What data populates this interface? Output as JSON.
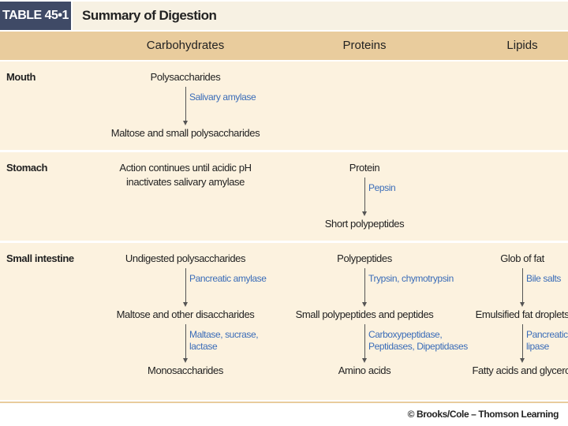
{
  "header": {
    "label": "TABLE 45•1",
    "title": "Summary of Digestion"
  },
  "table": {
    "columns": [
      "Carbohydrates",
      "Proteins",
      "Lipids"
    ],
    "rows": [
      {
        "name": "Mouth",
        "cells": [
          {
            "substances": [
              "Polysaccharides",
              "Maltose and small polysaccharides"
            ],
            "enzymes": [
              [
                "Salivary amylase"
              ]
            ]
          },
          {},
          {}
        ]
      },
      {
        "name": "Stomach",
        "cells": [
          {
            "note": [
              "Action continues until acidic pH",
              "inactivates salivary amylase"
            ]
          },
          {
            "substances": [
              "Protein",
              "Short polypeptides"
            ],
            "enzymes": [
              [
                "Pepsin"
              ]
            ]
          },
          {}
        ]
      },
      {
        "name": "Small intestine",
        "cells": [
          {
            "substances": [
              "Undigested polysaccharides",
              "Maltose and other disaccharides",
              "Monosaccharides"
            ],
            "enzymes": [
              [
                "Pancreatic amylase"
              ],
              [
                "Maltase, sucrase,",
                "lactase"
              ]
            ]
          },
          {
            "substances": [
              "Polypeptides",
              "Small polypeptides and peptides",
              "Amino acids"
            ],
            "enzymes": [
              [
                "Trypsin, chymotrypsin"
              ],
              [
                "Carboxypeptidase,",
                "Peptidases, Dipeptidases"
              ]
            ]
          },
          {
            "substances": [
              "Glob of fat",
              "Emulsified fat droplets",
              "Fatty acids and glycerol"
            ],
            "enzymes": [
              [
                "Bile salts"
              ],
              [
                "Pancreatic",
                "lipase"
              ]
            ]
          }
        ]
      }
    ]
  },
  "footer": {
    "credit": "© Brooks/Cole – Thomson Learning"
  }
}
